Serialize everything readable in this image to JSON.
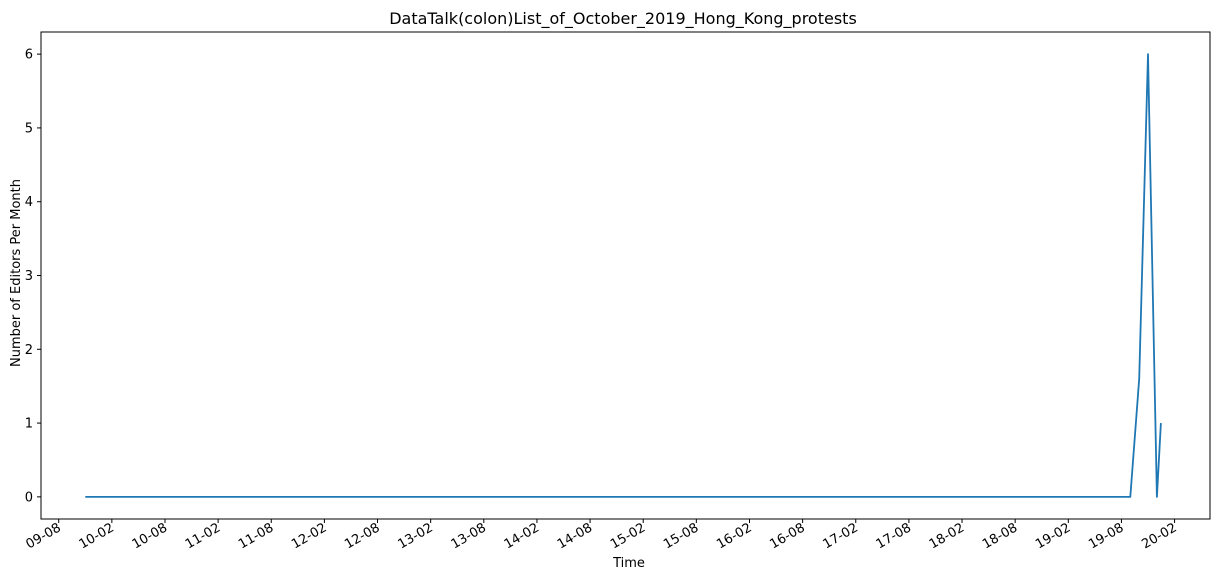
{
  "chart_data": {
    "type": "line",
    "title": "DataTalk(colon)List_of_October_2019_Hong_Kong_protests",
    "xlabel": "Time",
    "ylabel": "Number of Editors Per Month",
    "x_tick_labels": [
      "09-08",
      "10-02",
      "10-08",
      "11-02",
      "11-08",
      "12-02",
      "12-08",
      "13-02",
      "13-08",
      "14-02",
      "14-08",
      "15-02",
      "15-08",
      "16-02",
      "16-08",
      "17-02",
      "17-08",
      "18-02",
      "18-08",
      "19-02",
      "19-08",
      "20-02"
    ],
    "y_ticks": [
      0,
      1,
      2,
      3,
      4,
      5,
      6
    ],
    "ylim": [
      -0.3,
      6.3
    ],
    "xlim": [
      "2009-06",
      "2020-06"
    ],
    "grid": false,
    "series": [
      {
        "color": "#1f77b4",
        "x": [
          "2009-11",
          "2019-09",
          "2019-10",
          "2019-11",
          "2019-12",
          "2019-12-15"
        ],
        "y": [
          0,
          0,
          1.6,
          6,
          0,
          1
        ]
      }
    ]
  }
}
